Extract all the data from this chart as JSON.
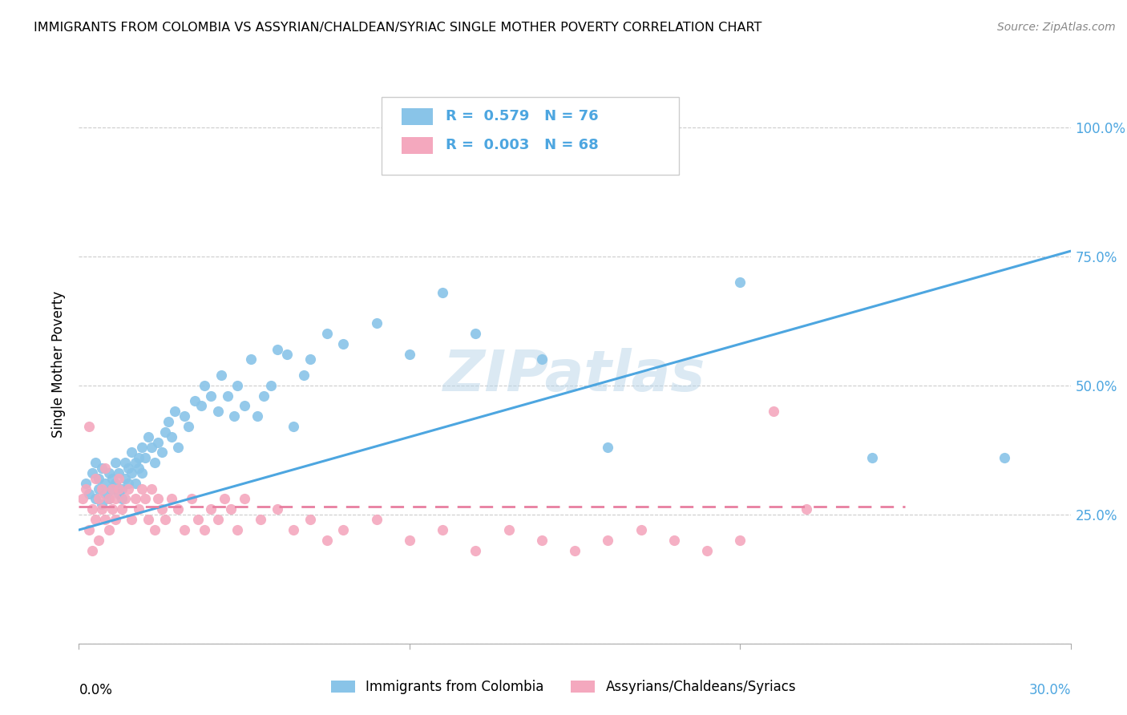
{
  "title": "IMMIGRANTS FROM COLOMBIA VS ASSYRIAN/CHALDEAN/SYRIAC SINGLE MOTHER POVERTY CORRELATION CHART",
  "source": "Source: ZipAtlas.com",
  "ylabel": "Single Mother Poverty",
  "ytick_positions": [
    0.0,
    0.25,
    0.5,
    0.75,
    1.0
  ],
  "ytick_labels": [
    "",
    "25.0%",
    "50.0%",
    "75.0%",
    "100.0%"
  ],
  "xtick_positions": [
    0.0,
    0.1,
    0.2,
    0.3
  ],
  "xlim": [
    0.0,
    0.3
  ],
  "ylim": [
    0.0,
    1.08
  ],
  "blue_R": "0.579",
  "blue_N": "76",
  "pink_R": "0.003",
  "pink_N": "68",
  "blue_color": "#89C4E8",
  "pink_color": "#F4A8BE",
  "blue_line_color": "#4DA6E0",
  "pink_line_color": "#E87FA0",
  "watermark": "ZIPatlas",
  "legend_label_blue": "Immigrants from Colombia",
  "legend_label_pink": "Assyrians/Chaldeans/Syriacs",
  "blue_scatter_x": [
    0.002,
    0.003,
    0.004,
    0.005,
    0.005,
    0.006,
    0.006,
    0.007,
    0.007,
    0.008,
    0.008,
    0.009,
    0.009,
    0.01,
    0.01,
    0.011,
    0.011,
    0.012,
    0.012,
    0.013,
    0.013,
    0.014,
    0.014,
    0.015,
    0.015,
    0.016,
    0.016,
    0.017,
    0.017,
    0.018,
    0.018,
    0.019,
    0.019,
    0.02,
    0.021,
    0.022,
    0.023,
    0.024,
    0.025,
    0.026,
    0.027,
    0.028,
    0.029,
    0.03,
    0.032,
    0.033,
    0.035,
    0.037,
    0.038,
    0.04,
    0.042,
    0.043,
    0.045,
    0.047,
    0.048,
    0.05,
    0.052,
    0.054,
    0.056,
    0.058,
    0.06,
    0.063,
    0.065,
    0.068,
    0.07,
    0.075,
    0.08,
    0.09,
    0.1,
    0.11,
    0.12,
    0.14,
    0.16,
    0.2,
    0.24,
    0.28
  ],
  "blue_scatter_y": [
    0.31,
    0.29,
    0.33,
    0.28,
    0.35,
    0.3,
    0.32,
    0.27,
    0.34,
    0.29,
    0.31,
    0.33,
    0.28,
    0.3,
    0.32,
    0.31,
    0.35,
    0.29,
    0.33,
    0.3,
    0.28,
    0.32,
    0.35,
    0.31,
    0.34,
    0.33,
    0.37,
    0.35,
    0.31,
    0.36,
    0.34,
    0.33,
    0.38,
    0.36,
    0.4,
    0.38,
    0.35,
    0.39,
    0.37,
    0.41,
    0.43,
    0.4,
    0.45,
    0.38,
    0.44,
    0.42,
    0.47,
    0.46,
    0.5,
    0.48,
    0.45,
    0.52,
    0.48,
    0.44,
    0.5,
    0.46,
    0.55,
    0.44,
    0.48,
    0.5,
    0.57,
    0.56,
    0.42,
    0.52,
    0.55,
    0.6,
    0.58,
    0.62,
    0.56,
    0.68,
    0.6,
    0.55,
    0.38,
    0.7,
    0.36,
    0.36
  ],
  "pink_scatter_x": [
    0.001,
    0.002,
    0.003,
    0.003,
    0.004,
    0.004,
    0.005,
    0.005,
    0.006,
    0.006,
    0.007,
    0.007,
    0.008,
    0.008,
    0.009,
    0.009,
    0.01,
    0.01,
    0.011,
    0.011,
    0.012,
    0.012,
    0.013,
    0.014,
    0.015,
    0.016,
    0.017,
    0.018,
    0.019,
    0.02,
    0.021,
    0.022,
    0.023,
    0.024,
    0.025,
    0.026,
    0.028,
    0.03,
    0.032,
    0.034,
    0.036,
    0.038,
    0.04,
    0.042,
    0.044,
    0.046,
    0.048,
    0.05,
    0.055,
    0.06,
    0.065,
    0.07,
    0.075,
    0.08,
    0.09,
    0.1,
    0.11,
    0.12,
    0.13,
    0.14,
    0.15,
    0.16,
    0.17,
    0.18,
    0.19,
    0.2,
    0.21,
    0.22
  ],
  "pink_scatter_y": [
    0.28,
    0.3,
    0.22,
    0.42,
    0.26,
    0.18,
    0.32,
    0.24,
    0.28,
    0.2,
    0.3,
    0.26,
    0.24,
    0.34,
    0.22,
    0.28,
    0.3,
    0.26,
    0.24,
    0.28,
    0.3,
    0.32,
    0.26,
    0.28,
    0.3,
    0.24,
    0.28,
    0.26,
    0.3,
    0.28,
    0.24,
    0.3,
    0.22,
    0.28,
    0.26,
    0.24,
    0.28,
    0.26,
    0.22,
    0.28,
    0.24,
    0.22,
    0.26,
    0.24,
    0.28,
    0.26,
    0.22,
    0.28,
    0.24,
    0.26,
    0.22,
    0.24,
    0.2,
    0.22,
    0.24,
    0.2,
    0.22,
    0.18,
    0.22,
    0.2,
    0.18,
    0.2,
    0.22,
    0.2,
    0.18,
    0.2,
    0.45,
    0.26
  ],
  "blue_trendline_x": [
    0.0,
    0.3
  ],
  "blue_trendline_y": [
    0.22,
    0.76
  ],
  "pink_trendline_x": [
    0.0,
    0.25
  ],
  "pink_trendline_y": [
    0.265,
    0.265
  ]
}
